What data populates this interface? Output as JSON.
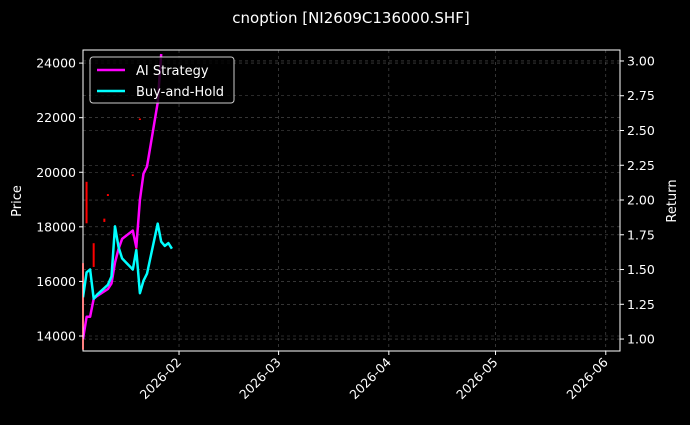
{
  "chart_data": {
    "type": "line",
    "title": "cnoption [NI2609C136000.SHF]",
    "ylabel": "Price",
    "y2label": "Return",
    "ylim": [
      13450,
      24480
    ],
    "y2lim": [
      0.914,
      3.079
    ],
    "xlim": [
      "2026-01-05",
      "2026-06-05"
    ],
    "grid": true,
    "legend": "top-left",
    "yticks": [
      "14000",
      "16000",
      "18000",
      "20000",
      "22000",
      "24000"
    ],
    "y2ticks": [
      "1.00",
      "1.25",
      "1.50",
      "1.75",
      "2.00",
      "2.25",
      "2.50",
      "2.75",
      "3.00"
    ],
    "xticks": [
      "2026-02",
      "2026-03",
      "2026-04",
      "2026-05",
      "2026-06"
    ],
    "price_bars_color": "#ff0000",
    "price_bars": [
      {
        "date": "2026-01-05",
        "high": 16670,
        "low": 13500
      },
      {
        "date": "2026-01-06",
        "high": 19650,
        "low": 18130
      },
      {
        "date": "2026-01-08",
        "high": 17400,
        "low": 16530
      },
      {
        "date": "2026-01-11",
        "high": 18300,
        "low": 18180
      },
      {
        "date": "2026-01-12",
        "high": 19200,
        "low": 19130
      },
      {
        "date": "2026-01-19",
        "high": 19920,
        "low": 19870
      },
      {
        "date": "2026-01-20",
        "high": 17600,
        "low": 16970
      },
      {
        "date": "2026-01-21",
        "high": 21970,
        "low": 21920
      }
    ],
    "series": [
      {
        "name": "AI Strategy",
        "color": "#ff00ff",
        "x": [
          "2026-01-05",
          "2026-01-06",
          "2026-01-07",
          "2026-01-08",
          "2026-01-09",
          "2026-01-12",
          "2026-01-13",
          "2026-01-14",
          "2026-01-15",
          "2026-01-16",
          "2026-01-19",
          "2026-01-20",
          "2026-01-21",
          "2026-01-22",
          "2026-01-23",
          "2026-01-26",
          "2026-01-27"
        ],
        "values": [
          1.0,
          1.16,
          1.16,
          1.29,
          1.31,
          1.36,
          1.4,
          1.55,
          1.65,
          1.72,
          1.78,
          1.66,
          2.0,
          2.19,
          2.24,
          2.7,
          3.05
        ]
      },
      {
        "name": "Buy-and-Hold",
        "color": "#00ffff",
        "x": [
          "2026-01-05",
          "2026-01-06",
          "2026-01-07",
          "2026-01-08",
          "2026-01-09",
          "2026-01-12",
          "2026-01-13",
          "2026-01-14",
          "2026-01-15",
          "2026-01-16",
          "2026-01-19",
          "2026-01-20",
          "2026-01-21",
          "2026-01-22",
          "2026-01-23",
          "2026-01-26",
          "2026-01-27",
          "2026-01-28",
          "2026-01-29",
          "2026-01-30"
        ],
        "values": [
          1.3,
          1.48,
          1.5,
          1.29,
          1.32,
          1.39,
          1.45,
          1.81,
          1.66,
          1.58,
          1.5,
          1.64,
          1.33,
          1.42,
          1.47,
          1.83,
          1.7,
          1.67,
          1.69,
          1.65
        ]
      }
    ]
  }
}
